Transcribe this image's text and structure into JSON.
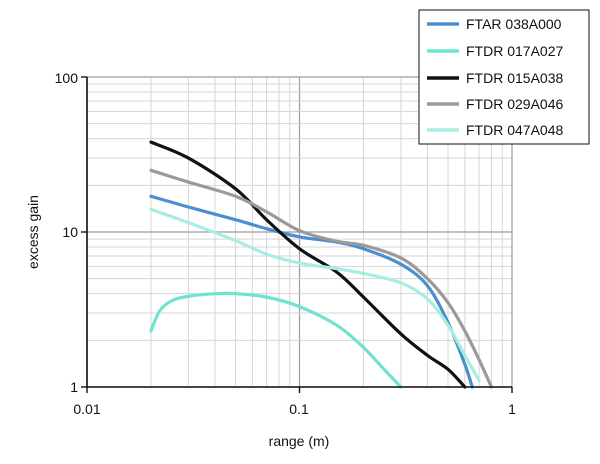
{
  "chart_data": {
    "type": "line",
    "title": "",
    "xlabel": "range (m)",
    "ylabel": "excess gain",
    "x_scale": "log",
    "y_scale": "log",
    "xlim": [
      0.01,
      1
    ],
    "ylim": [
      1,
      100
    ],
    "x_ticks": [
      "0.01",
      "0.1",
      "1"
    ],
    "y_ticks": [
      "1",
      "10",
      "100"
    ],
    "grid": true,
    "legend_position": "top-right",
    "series": [
      {
        "name": "FTAR 038A000",
        "color": "#4a90d0",
        "points": [
          [
            0.02,
            17
          ],
          [
            0.03,
            14.5
          ],
          [
            0.05,
            12
          ],
          [
            0.07,
            10.5
          ],
          [
            0.1,
            9.3
          ],
          [
            0.15,
            8.6
          ],
          [
            0.2,
            7.8
          ],
          [
            0.3,
            6.2
          ],
          [
            0.4,
            4.5
          ],
          [
            0.5,
            2.6
          ],
          [
            0.6,
            1.4
          ],
          [
            0.65,
            1.0
          ]
        ]
      },
      {
        "name": "FTDR 017A027",
        "color": "#6fe3cf",
        "points": [
          [
            0.02,
            2.3
          ],
          [
            0.022,
            3.1
          ],
          [
            0.025,
            3.6
          ],
          [
            0.03,
            3.85
          ],
          [
            0.04,
            4.0
          ],
          [
            0.05,
            4.0
          ],
          [
            0.07,
            3.8
          ],
          [
            0.1,
            3.3
          ],
          [
            0.15,
            2.5
          ],
          [
            0.2,
            1.8
          ],
          [
            0.25,
            1.3
          ],
          [
            0.3,
            1.0
          ]
        ]
      },
      {
        "name": "FTDR 015A038",
        "color": "#111111",
        "points": [
          [
            0.02,
            38
          ],
          [
            0.03,
            30
          ],
          [
            0.05,
            19
          ],
          [
            0.07,
            12
          ],
          [
            0.1,
            7.8
          ],
          [
            0.15,
            5.5
          ],
          [
            0.2,
            3.8
          ],
          [
            0.3,
            2.2
          ],
          [
            0.4,
            1.6
          ],
          [
            0.5,
            1.3
          ],
          [
            0.6,
            1.0
          ]
        ]
      },
      {
        "name": "FTDR 029A046",
        "color": "#9a9a9a",
        "points": [
          [
            0.02,
            25
          ],
          [
            0.03,
            21
          ],
          [
            0.05,
            17
          ],
          [
            0.07,
            13.5
          ],
          [
            0.1,
            10.2
          ],
          [
            0.15,
            8.7
          ],
          [
            0.2,
            8.2
          ],
          [
            0.3,
            6.8
          ],
          [
            0.4,
            5.0
          ],
          [
            0.5,
            3.5
          ],
          [
            0.6,
            2.3
          ],
          [
            0.7,
            1.5
          ],
          [
            0.8,
            1.0
          ]
        ]
      },
      {
        "name": "FTDR 047A048",
        "color": "#a9ece2",
        "points": [
          [
            0.02,
            14
          ],
          [
            0.03,
            11.5
          ],
          [
            0.05,
            8.8
          ],
          [
            0.07,
            7.2
          ],
          [
            0.1,
            6.3
          ],
          [
            0.15,
            5.8
          ],
          [
            0.2,
            5.4
          ],
          [
            0.3,
            4.7
          ],
          [
            0.4,
            3.7
          ],
          [
            0.5,
            2.5
          ],
          [
            0.6,
            1.6
          ],
          [
            0.7,
            1.1
          ]
        ]
      }
    ]
  }
}
